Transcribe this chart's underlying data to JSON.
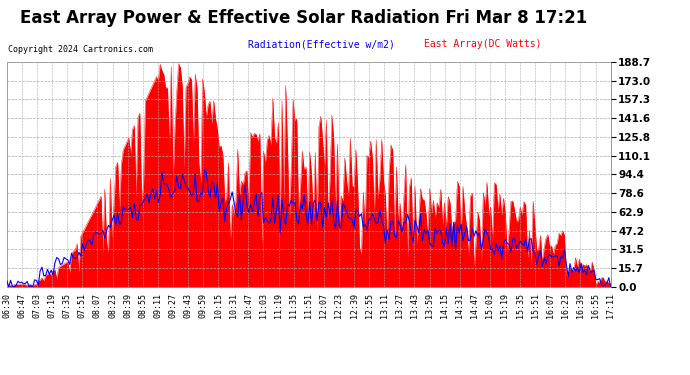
{
  "title": "East Array Power & Effective Solar Radiation Fri Mar 8 17:21",
  "copyright": "Copyright 2024 Cartronics.com",
  "legend_radiation": "Radiation(Effective w/m2)",
  "legend_east": "East Array(DC Watts)",
  "radiation_color": "blue",
  "east_color": "red",
  "bg_color": "#ffffff",
  "grid_color": "#aaaaaa",
  "ymin": 0.0,
  "ymax": 188.7,
  "yticks": [
    0.0,
    15.7,
    31.5,
    47.2,
    62.9,
    78.6,
    94.4,
    110.1,
    125.8,
    141.6,
    157.3,
    173.0,
    188.7
  ],
  "xtick_labels": [
    "06:30",
    "06:47",
    "07:03",
    "07:19",
    "07:35",
    "07:51",
    "08:07",
    "08:23",
    "08:39",
    "08:55",
    "09:11",
    "09:27",
    "09:43",
    "09:59",
    "10:15",
    "10:31",
    "10:47",
    "11:03",
    "11:19",
    "11:35",
    "11:51",
    "12:07",
    "12:23",
    "12:39",
    "12:55",
    "13:11",
    "13:27",
    "13:43",
    "13:59",
    "14:15",
    "14:31",
    "14:47",
    "15:03",
    "15:19",
    "15:35",
    "15:51",
    "16:07",
    "16:23",
    "16:39",
    "16:55",
    "17:11"
  ],
  "title_fontsize": 12,
  "tick_fontsize": 6,
  "copyright_fontsize": 6,
  "legend_fontsize": 7
}
